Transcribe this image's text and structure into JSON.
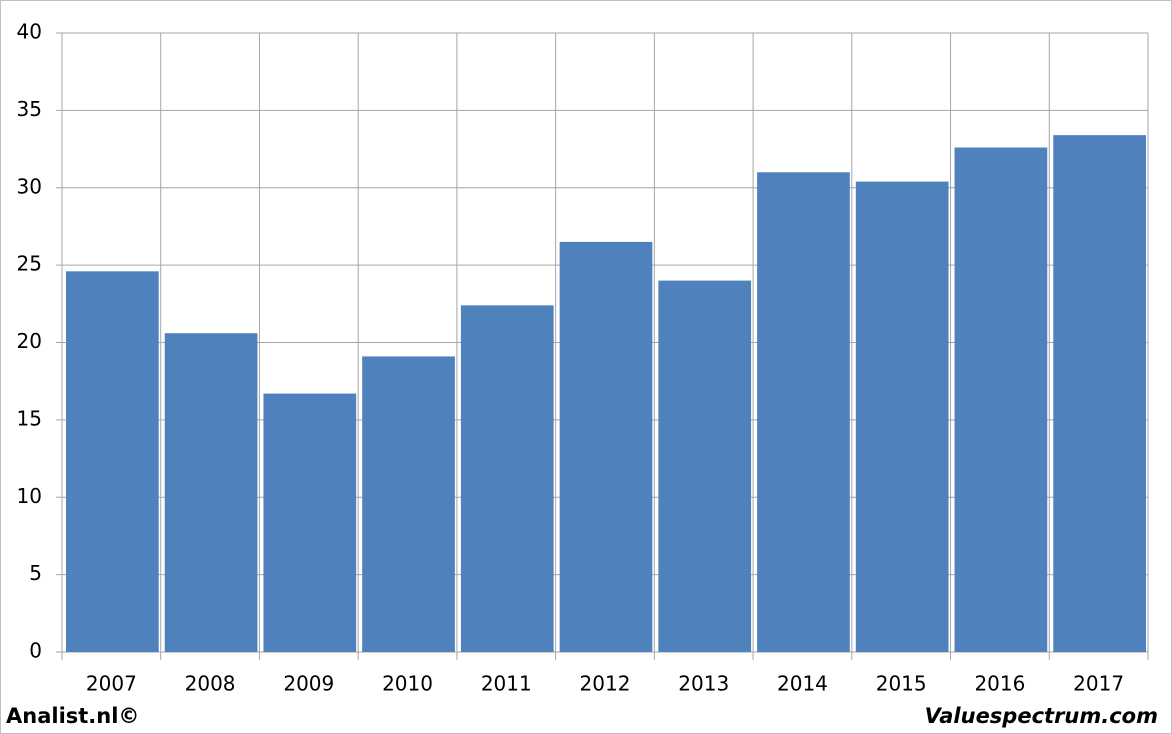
{
  "chart_data": {
    "type": "bar",
    "categories": [
      "2007",
      "2008",
      "2009",
      "2010",
      "2011",
      "2012",
      "2013",
      "2014",
      "2015",
      "2016",
      "2017"
    ],
    "values": [
      24.6,
      20.6,
      16.7,
      19.1,
      22.4,
      26.5,
      24.0,
      31.0,
      30.4,
      32.6,
      33.4
    ],
    "color": "#4f81bd",
    "ylim": [
      0,
      40
    ],
    "yticks": [
      0,
      5,
      10,
      15,
      20,
      25,
      30,
      35,
      40
    ],
    "grid": true,
    "annotations": [
      "Analist.nl©",
      "Valuespectrum.com"
    ]
  }
}
